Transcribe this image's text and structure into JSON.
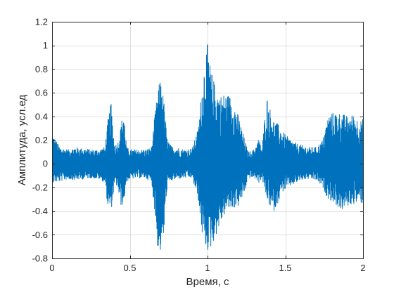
{
  "chart_data": {
    "type": "line",
    "title": "",
    "xlabel": "Время, с",
    "ylabel": "Амплитуда, усл.ед",
    "xlim": [
      0,
      2
    ],
    "ylim": [
      -0.8,
      1.2
    ],
    "xticks": [
      0,
      0.5,
      1,
      1.5,
      2
    ],
    "xtick_labels": [
      "0",
      "0.5",
      "1",
      "1.5",
      "2"
    ],
    "yticks": [
      -0.8,
      -0.6,
      -0.4,
      -0.2,
      0,
      0.2,
      0.4,
      0.6,
      0.8,
      1,
      1.2
    ],
    "ytick_labels": [
      "-0.8",
      "-0.6",
      "-0.4",
      "-0.2",
      "0",
      "0.2",
      "0.4",
      "0.6",
      "0.8",
      "1",
      "1.2"
    ],
    "grid": true,
    "series": [
      {
        "color": "#0072bd",
        "envelope": {
          "x": [
            0.0,
            0.05,
            0.1,
            0.15,
            0.2,
            0.25,
            0.3,
            0.34,
            0.36,
            0.38,
            0.4,
            0.42,
            0.44,
            0.46,
            0.48,
            0.5,
            0.55,
            0.6,
            0.64,
            0.66,
            0.68,
            0.7,
            0.72,
            0.74,
            0.76,
            0.78,
            0.8,
            0.85,
            0.9,
            0.94,
            0.96,
            0.98,
            1.0,
            1.02,
            1.05,
            1.08,
            1.12,
            1.16,
            1.2,
            1.24,
            1.26,
            1.3,
            1.33,
            1.35,
            1.38,
            1.42,
            1.45,
            1.48,
            1.52,
            1.56,
            1.6,
            1.65,
            1.7,
            1.74,
            1.76,
            1.78,
            1.82,
            1.86,
            1.9,
            1.94,
            1.98,
            2.0
          ],
          "max": [
            0.26,
            0.14,
            0.12,
            0.14,
            0.13,
            0.12,
            0.12,
            0.14,
            0.38,
            0.52,
            0.18,
            0.16,
            0.3,
            0.47,
            0.14,
            0.12,
            0.12,
            0.12,
            0.14,
            0.4,
            0.62,
            0.74,
            0.52,
            0.22,
            0.16,
            0.14,
            0.14,
            0.12,
            0.13,
            0.3,
            0.6,
            0.86,
            1.02,
            0.8,
            0.66,
            0.58,
            0.6,
            0.56,
            0.4,
            0.2,
            0.1,
            0.12,
            0.22,
            0.12,
            0.58,
            0.38,
            0.34,
            0.28,
            0.22,
            0.18,
            0.16,
            0.14,
            0.14,
            0.2,
            0.32,
            0.42,
            0.44,
            0.43,
            0.4,
            0.42,
            0.36,
            0.38
          ],
          "min": [
            -0.16,
            -0.15,
            -0.13,
            -0.14,
            -0.13,
            -0.12,
            -0.13,
            -0.16,
            -0.38,
            -0.4,
            -0.2,
            -0.18,
            -0.36,
            -0.34,
            -0.15,
            -0.13,
            -0.12,
            -0.12,
            -0.16,
            -0.4,
            -0.72,
            -0.76,
            -0.6,
            -0.2,
            -0.15,
            -0.14,
            -0.13,
            -0.12,
            -0.12,
            -0.3,
            -0.56,
            -0.7,
            -0.74,
            -0.72,
            -0.62,
            -0.52,
            -0.4,
            -0.38,
            -0.36,
            -0.24,
            -0.12,
            -0.12,
            -0.16,
            -0.12,
            -0.3,
            -0.42,
            -0.34,
            -0.24,
            -0.2,
            -0.17,
            -0.14,
            -0.13,
            -0.14,
            -0.2,
            -0.26,
            -0.3,
            -0.34,
            -0.4,
            -0.36,
            -0.34,
            -0.33,
            -0.34
          ]
        }
      }
    ]
  }
}
